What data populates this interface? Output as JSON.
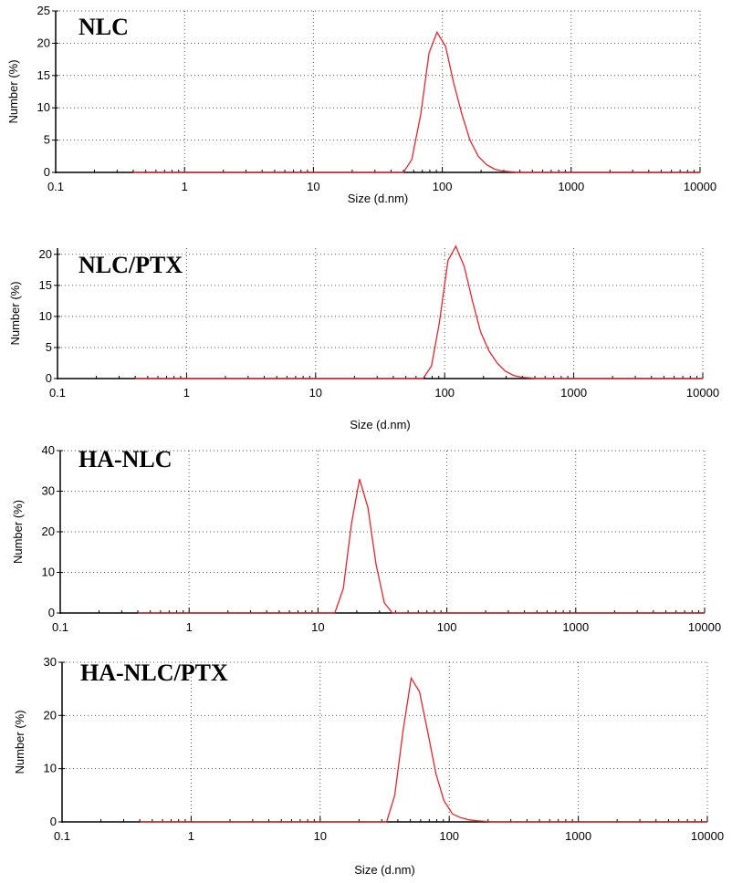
{
  "chart_data": [
    {
      "type": "line",
      "title": "NLC",
      "xlabel": "Size (d.nm)",
      "ylabel": "Number (%)",
      "xscale": "log",
      "xlim": [
        0.1,
        10000
      ],
      "ylim": [
        0,
        25
      ],
      "yticks": [
        0,
        5,
        10,
        15,
        20,
        25
      ],
      "xtick_labels": [
        "0.1",
        "1",
        "10",
        "100",
        "1000",
        "10000"
      ],
      "ytick_labels": [
        "0",
        "5",
        "10",
        "15",
        "20",
        "25"
      ],
      "grid": true,
      "series": [
        {
          "color": "#e8242a",
          "x": [
            0.4,
            50,
            58,
            68,
            79,
            91,
            106,
            122,
            142,
            164,
            190,
            220,
            255,
            295,
            342,
            396,
            10000
          ],
          "y": [
            0,
            0,
            2,
            9,
            18.5,
            21.7,
            19.5,
            14,
            9,
            5,
            2.5,
            1.2,
            0.5,
            0.2,
            0.1,
            0,
            0
          ]
        }
      ]
    },
    {
      "type": "line",
      "title": "NLC/PTX",
      "xlabel": "Size (d.nm)",
      "ylabel": "Number (%)",
      "xscale": "log",
      "xlim": [
        0.1,
        10000
      ],
      "ylim": [
        0,
        21
      ],
      "yticks": [
        0,
        5,
        10,
        15,
        20
      ],
      "xtick_labels": [
        "0.1",
        "1",
        "10",
        "100",
        "1000",
        "10000"
      ],
      "ytick_labels": [
        "0",
        "5",
        "10",
        "15",
        "20"
      ],
      "grid": true,
      "series": [
        {
          "color": "#e8242a",
          "x": [
            0.4,
            68,
            79,
            91,
            106,
            122,
            142,
            164,
            190,
            220,
            255,
            295,
            342,
            396,
            459,
            531,
            10000
          ],
          "y": [
            0,
            0,
            2,
            9,
            19,
            21.3,
            18,
            12.5,
            7.5,
            4.5,
            2.5,
            1.2,
            0.5,
            0.2,
            0.1,
            0,
            0
          ]
        }
      ]
    },
    {
      "type": "line",
      "title": "HA-NLC",
      "xlabel": "",
      "ylabel": "Number (%)",
      "xscale": "log",
      "xlim": [
        0.1,
        10000
      ],
      "ylim": [
        0,
        40
      ],
      "yticks": [
        0,
        10,
        20,
        30,
        40
      ],
      "xtick_labels": [
        "0.1",
        "1",
        "10",
        "100",
        "1000",
        "10000"
      ],
      "ytick_labels": [
        "0",
        "10",
        "20",
        "30",
        "40"
      ],
      "grid": true,
      "series": [
        {
          "color": "#e8242a",
          "x": [
            0.4,
            13.5,
            15.7,
            18.2,
            21,
            24.4,
            28.2,
            32.7,
            37.8,
            10000
          ],
          "y": [
            0,
            0,
            6,
            22,
            33,
            26,
            12,
            2.5,
            0,
            0
          ]
        }
      ]
    },
    {
      "type": "line",
      "title": "HA-NLC/PTX",
      "xlabel": "Size (d.nm)",
      "ylabel": "Number (%)",
      "xscale": "log",
      "xlim": [
        0.1,
        10000
      ],
      "ylim": [
        0,
        30
      ],
      "yticks": [
        0,
        10,
        20,
        30
      ],
      "xtick_labels": [
        "0.1",
        "1",
        "10",
        "100",
        "1000",
        "10000"
      ],
      "ytick_labels": [
        "0",
        "10",
        "20",
        "30"
      ],
      "grid": true,
      "series": [
        {
          "color": "#e8242a",
          "x": [
            0.4,
            32.7,
            37.8,
            43.8,
            50.7,
            58.8,
            68,
            79,
            91,
            106,
            122,
            142,
            164,
            190,
            220,
            10000
          ],
          "y": [
            0,
            0,
            5,
            17,
            27,
            24.5,
            17,
            9,
            4,
            1.5,
            0.8,
            0.4,
            0.2,
            0.1,
            0,
            0
          ]
        }
      ]
    }
  ]
}
